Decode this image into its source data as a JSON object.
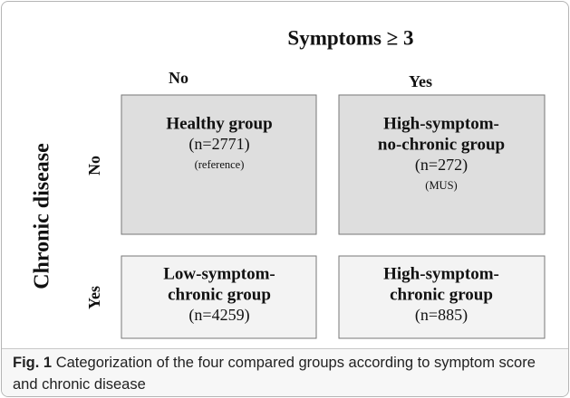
{
  "title": "Symptoms ≥ 3",
  "column_headers": [
    "No",
    "Yes"
  ],
  "row_axis_label": "Chronic disease",
  "row_headers": [
    "No",
    "Yes"
  ],
  "cells": [
    [
      {
        "lines": [
          "Healthy group"
        ],
        "n": "(n=2771)",
        "note": "(reference)"
      },
      {
        "lines": [
          "High-symptom-",
          "no-chronic group"
        ],
        "n": "(n=272)",
        "note": "(MUS)"
      }
    ],
    [
      {
        "lines": [
          "Low-symptom-",
          "chronic group"
        ],
        "n": "(n=4259)"
      },
      {
        "lines": [
          "High-symptom-",
          "chronic group"
        ],
        "n": "(n=885)"
      }
    ]
  ],
  "caption": {
    "label": "Fig. 1",
    "text": "Categorization of the four compared groups according to symptom score and chronic disease"
  }
}
